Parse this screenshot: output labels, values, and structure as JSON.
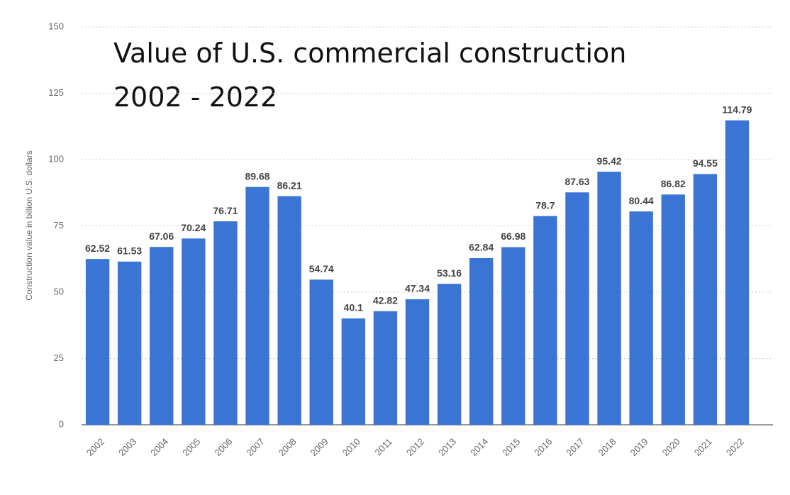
{
  "chart_data": {
    "type": "bar",
    "title": "Value of U.S. commercial construction",
    "subtitle": "2002 - 2022",
    "y_label": "Construction value in billion U.S. dollars",
    "categories": [
      "2002",
      "2003",
      "2004",
      "2005",
      "2006",
      "2007",
      "2008",
      "2009",
      "2010",
      "2011",
      "2012",
      "2013",
      "2014",
      "2015",
      "2016",
      "2017",
      "2018",
      "2019",
      "2020",
      "2021",
      "2022"
    ],
    "values": [
      62.52,
      61.53,
      67.06,
      70.24,
      76.71,
      89.68,
      86.21,
      54.74,
      40.1,
      42.82,
      47.34,
      53.16,
      62.84,
      66.98,
      78.7,
      87.63,
      95.42,
      80.44,
      86.82,
      94.55,
      114.79
    ],
    "color": "#3a75d6",
    "ylim": [
      0,
      150
    ],
    "yticks": [
      0,
      25,
      50,
      75,
      100,
      125,
      150
    ],
    "grid": true
  }
}
